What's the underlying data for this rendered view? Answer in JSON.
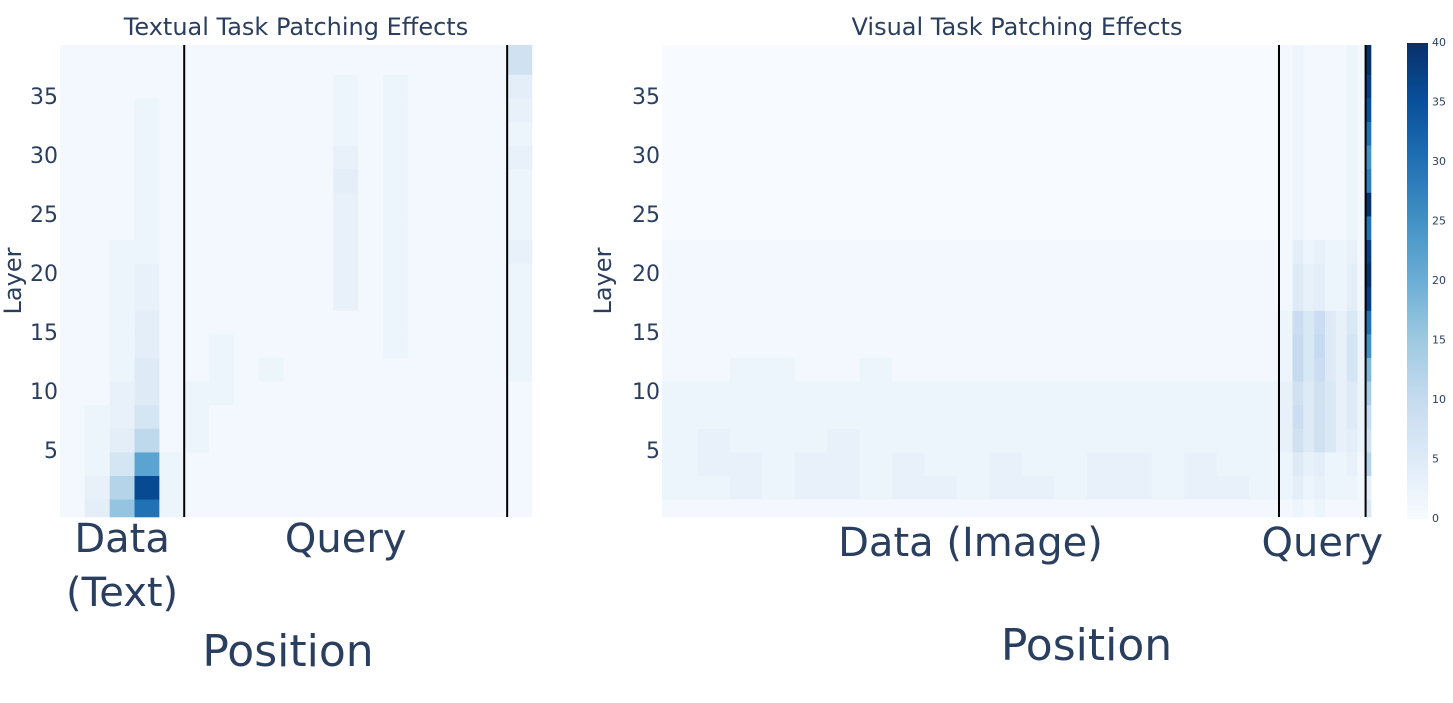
{
  "chart_data": [
    {
      "type": "heatmap",
      "title": "Textual Task Patching Effects",
      "y_label": "Layer",
      "x_label": "Position",
      "colorscale": "Blues",
      "zlim": [
        0,
        40
      ],
      "x": [
        0,
        1,
        2,
        3,
        4,
        5,
        6,
        7,
        8,
        9,
        10,
        11,
        12,
        13,
        14,
        15,
        16,
        17,
        18
      ],
      "y": [
        0,
        2,
        4,
        6,
        8,
        10,
        12,
        14,
        16,
        18,
        20,
        22,
        24,
        26,
        28,
        30,
        32,
        34,
        36,
        38
      ],
      "xlim": [
        -0.5,
        18.5
      ],
      "ylim": [
        -0.5,
        39.5
      ],
      "yticks": [
        5,
        10,
        15,
        20,
        25,
        30,
        35
      ],
      "dividers": [
        4.5,
        17.5
      ],
      "groups": [
        [
          "Data",
          "(Text)"
        ],
        [
          "Query"
        ]
      ],
      "z": [
        [
          1,
          4,
          16,
          30,
          2,
          1,
          1,
          1,
          1,
          1,
          1,
          1,
          1,
          1,
          1,
          1,
          1,
          1,
          1
        ],
        [
          1,
          3,
          12,
          36,
          2,
          1,
          1,
          1,
          1,
          1,
          1,
          1,
          1,
          1,
          1,
          1,
          1,
          1,
          1
        ],
        [
          1,
          2,
          7,
          22,
          2,
          1,
          1,
          1,
          1,
          1,
          1,
          1,
          1,
          1,
          1,
          1,
          1,
          1,
          1
        ],
        [
          1,
          2,
          4,
          11,
          1,
          2,
          1,
          1,
          1,
          1,
          1,
          1,
          1,
          1,
          1,
          1,
          1,
          1,
          1
        ],
        [
          1,
          2,
          3,
          7,
          1,
          2,
          1,
          1,
          1,
          1,
          1,
          1,
          1,
          1,
          1,
          1,
          1,
          1,
          1
        ],
        [
          1,
          1,
          3,
          5,
          1,
          2,
          2,
          1,
          1,
          1,
          1,
          1,
          1,
          1,
          1,
          1,
          1,
          1,
          1
        ],
        [
          1,
          1,
          2,
          5,
          1,
          1,
          2,
          1,
          2,
          1,
          1,
          1,
          1,
          1,
          1,
          1,
          1,
          1,
          2
        ],
        [
          1,
          1,
          2,
          4,
          1,
          1,
          2,
          1,
          1,
          1,
          1,
          1,
          1,
          2,
          1,
          1,
          1,
          1,
          2
        ],
        [
          1,
          1,
          2,
          4,
          1,
          1,
          1,
          1,
          1,
          1,
          1,
          1,
          1,
          2,
          1,
          1,
          1,
          1,
          2
        ],
        [
          1,
          1,
          2,
          3,
          1,
          1,
          1,
          1,
          1,
          1,
          1,
          3,
          1,
          2,
          1,
          1,
          1,
          1,
          2
        ],
        [
          1,
          1,
          2,
          3,
          1,
          1,
          1,
          1,
          1,
          1,
          1,
          3,
          1,
          2,
          1,
          1,
          1,
          1,
          2
        ],
        [
          1,
          1,
          2,
          2,
          1,
          1,
          1,
          1,
          1,
          1,
          1,
          3,
          1,
          2,
          1,
          1,
          1,
          1,
          3
        ],
        [
          1,
          1,
          1,
          2,
          1,
          1,
          1,
          1,
          1,
          1,
          1,
          3,
          1,
          2,
          1,
          1,
          1,
          1,
          2
        ],
        [
          1,
          1,
          1,
          2,
          1,
          1,
          1,
          1,
          1,
          1,
          1,
          3,
          1,
          2,
          1,
          1,
          1,
          1,
          2
        ],
        [
          1,
          1,
          1,
          2,
          1,
          1,
          1,
          1,
          1,
          1,
          1,
          4,
          1,
          2,
          1,
          1,
          1,
          1,
          2
        ],
        [
          1,
          1,
          1,
          2,
          1,
          1,
          1,
          1,
          1,
          1,
          1,
          3,
          1,
          2,
          1,
          1,
          1,
          1,
          3
        ],
        [
          1,
          1,
          1,
          2,
          1,
          1,
          1,
          1,
          1,
          1,
          1,
          2,
          1,
          2,
          1,
          1,
          1,
          1,
          2
        ],
        [
          1,
          1,
          1,
          2,
          1,
          1,
          1,
          1,
          1,
          1,
          1,
          2,
          1,
          2,
          1,
          1,
          1,
          1,
          3
        ],
        [
          1,
          1,
          1,
          1,
          1,
          1,
          1,
          1,
          1,
          1,
          1,
          2,
          1,
          2,
          1,
          1,
          1,
          1,
          4
        ],
        [
          1,
          1,
          1,
          1,
          1,
          1,
          1,
          1,
          1,
          1,
          1,
          1,
          1,
          1,
          1,
          1,
          1,
          1,
          8
        ]
      ]
    },
    {
      "type": "heatmap",
      "title": "Visual Task Patching Effects",
      "y_label": "Layer",
      "x_label": "Position",
      "colorscale": "Blues",
      "zlim": [
        0,
        40
      ],
      "x": [
        3,
        9,
        15,
        21,
        27,
        33,
        39,
        45,
        51,
        57,
        63,
        69,
        75,
        81,
        87,
        93,
        99,
        105,
        111,
        115,
        117,
        119,
        121,
        123,
        125,
        127,
        129,
        130
      ],
      "y": [
        0,
        2,
        4,
        6,
        8,
        10,
        12,
        14,
        16,
        18,
        20,
        22,
        24,
        26,
        28,
        30,
        32,
        34,
        36,
        38
      ],
      "xlim": [
        -0.5,
        130.5
      ],
      "ylim": [
        -0.5,
        39.5
      ],
      "yticks": [
        5,
        10,
        15,
        20,
        25,
        30,
        35
      ],
      "dividers": [
        113.5,
        129.5
      ],
      "groups": [
        [
          "Data (Image)"
        ],
        [
          "Query"
        ]
      ],
      "colorbar": {
        "ticks": [
          0,
          5,
          10,
          15,
          20,
          25,
          30,
          35,
          40
        ]
      },
      "z": [
        [
          1,
          1,
          1,
          1,
          1,
          1,
          1,
          1,
          1,
          1,
          1,
          1,
          1,
          1,
          1,
          1,
          1,
          1,
          1,
          1,
          2,
          1,
          2,
          1,
          1,
          1,
          1,
          6
        ],
        [
          2,
          2,
          3,
          2,
          3,
          3,
          2,
          3,
          3,
          2,
          3,
          3,
          2,
          3,
          3,
          2,
          3,
          3,
          2,
          2,
          4,
          2,
          3,
          2,
          2,
          2,
          1,
          4
        ],
        [
          2,
          3,
          3,
          2,
          3,
          3,
          2,
          3,
          2,
          2,
          3,
          2,
          2,
          3,
          3,
          2,
          3,
          2,
          2,
          2,
          5,
          3,
          4,
          2,
          2,
          3,
          1,
          12
        ],
        [
          2,
          3,
          2,
          2,
          2,
          3,
          2,
          2,
          2,
          2,
          2,
          2,
          2,
          2,
          2,
          2,
          2,
          2,
          2,
          3,
          8,
          5,
          8,
          6,
          3,
          4,
          2,
          8
        ],
        [
          2,
          2,
          2,
          2,
          2,
          2,
          2,
          2,
          2,
          2,
          2,
          2,
          2,
          2,
          2,
          2,
          2,
          2,
          2,
          3,
          9,
          5,
          8,
          6,
          3,
          5,
          2,
          10
        ],
        [
          2,
          2,
          2,
          2,
          2,
          2,
          2,
          2,
          2,
          2,
          2,
          2,
          2,
          2,
          2,
          2,
          2,
          2,
          2,
          3,
          8,
          5,
          8,
          6,
          3,
          5,
          2,
          14
        ],
        [
          1,
          1,
          2,
          2,
          1,
          1,
          2,
          1,
          1,
          1,
          1,
          1,
          1,
          1,
          1,
          1,
          1,
          1,
          1,
          2,
          10,
          6,
          9,
          5,
          3,
          7,
          2,
          18
        ],
        [
          1,
          1,
          1,
          1,
          1,
          1,
          1,
          1,
          1,
          1,
          1,
          1,
          1,
          1,
          1,
          1,
          1,
          1,
          1,
          2,
          10,
          6,
          10,
          5,
          3,
          7,
          2,
          25
        ],
        [
          1,
          1,
          1,
          1,
          1,
          1,
          1,
          1,
          1,
          1,
          1,
          1,
          1,
          1,
          1,
          1,
          1,
          1,
          1,
          2,
          9,
          6,
          9,
          5,
          3,
          6,
          2,
          30
        ],
        [
          1,
          1,
          1,
          1,
          1,
          1,
          1,
          1,
          1,
          1,
          1,
          1,
          1,
          1,
          1,
          1,
          1,
          1,
          1,
          1,
          5,
          3,
          4,
          2,
          2,
          4,
          1,
          38
        ],
        [
          1,
          1,
          1,
          1,
          1,
          1,
          1,
          1,
          1,
          1,
          1,
          1,
          1,
          1,
          1,
          1,
          1,
          1,
          1,
          1,
          5,
          3,
          4,
          2,
          2,
          4,
          1,
          40
        ],
        [
          1,
          1,
          1,
          1,
          1,
          1,
          1,
          1,
          1,
          1,
          1,
          1,
          1,
          1,
          1,
          1,
          1,
          1,
          1,
          1,
          4,
          2,
          3,
          2,
          2,
          3,
          1,
          38
        ],
        [
          0,
          0,
          0,
          0,
          0,
          0,
          0,
          0,
          0,
          0,
          0,
          0,
          0,
          0,
          0,
          0,
          0,
          0,
          0,
          1,
          2,
          1,
          1,
          1,
          1,
          2,
          1,
          30
        ],
        [
          0,
          0,
          0,
          0,
          0,
          0,
          0,
          0,
          0,
          0,
          0,
          0,
          0,
          0,
          0,
          0,
          0,
          0,
          0,
          1,
          2,
          1,
          1,
          1,
          1,
          2,
          1,
          40
        ],
        [
          0,
          0,
          0,
          0,
          0,
          0,
          0,
          0,
          0,
          0,
          0,
          0,
          0,
          0,
          0,
          0,
          0,
          0,
          0,
          1,
          2,
          1,
          1,
          1,
          1,
          2,
          1,
          28
        ],
        [
          0,
          0,
          0,
          0,
          0,
          0,
          0,
          0,
          0,
          0,
          0,
          0,
          0,
          0,
          0,
          0,
          0,
          0,
          0,
          1,
          2,
          1,
          1,
          1,
          1,
          2,
          1,
          25
        ],
        [
          0,
          0,
          0,
          0,
          0,
          0,
          0,
          0,
          0,
          0,
          0,
          0,
          0,
          0,
          0,
          0,
          0,
          0,
          0,
          1,
          2,
          1,
          1,
          1,
          1,
          2,
          1,
          30
        ],
        [
          0,
          0,
          0,
          0,
          0,
          0,
          0,
          0,
          0,
          0,
          0,
          0,
          0,
          0,
          0,
          0,
          0,
          0,
          0,
          1,
          2,
          1,
          1,
          1,
          1,
          2,
          1,
          35
        ],
        [
          0,
          0,
          0,
          0,
          0,
          0,
          0,
          0,
          0,
          0,
          0,
          0,
          0,
          0,
          0,
          0,
          0,
          0,
          0,
          1,
          2,
          1,
          1,
          1,
          1,
          2,
          1,
          38
        ],
        [
          0,
          0,
          0,
          0,
          0,
          0,
          0,
          0,
          0,
          0,
          0,
          0,
          0,
          0,
          0,
          0,
          0,
          0,
          0,
          1,
          2,
          1,
          1,
          1,
          1,
          2,
          1,
          40
        ]
      ]
    }
  ]
}
